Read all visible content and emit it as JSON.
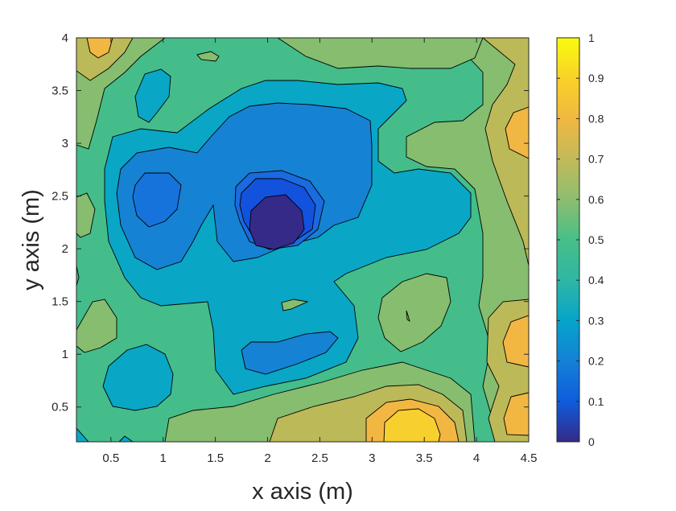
{
  "chart_data": {
    "type": "contourf",
    "xlabel": "x axis (m)",
    "ylabel": "y axis (m)",
    "xlim": [
      0.17,
      4.5
    ],
    "ylim": [
      0.17,
      4.0
    ],
    "x_ticks": [
      "0.5",
      "1",
      "1.5",
      "2",
      "2.5",
      "3",
      "3.5",
      "4",
      "4.5"
    ],
    "y_ticks": [
      "0.5",
      "1",
      "1.5",
      "2",
      "2.5",
      "3",
      "3.5",
      "4"
    ],
    "colorbar": {
      "ticks": [
        "0",
        "0.1",
        "0.2",
        "0.3",
        "0.4",
        "0.5",
        "0.6",
        "0.7",
        "0.8",
        "0.9",
        "1"
      ],
      "range": [
        0,
        1
      ],
      "colormap": "parula"
    },
    "features": [
      {
        "x": 2.1,
        "y": 2.25,
        "value": 0.05
      },
      {
        "x": 0.92,
        "y": 2.45,
        "value": 0.3
      },
      {
        "x": 2.1,
        "y": 0.93,
        "value": 0.3
      },
      {
        "x": 0.8,
        "y": 3.5,
        "value": 0.4
      },
      {
        "x": 0.75,
        "y": 0.8,
        "value": 0.4
      },
      {
        "x": 0.33,
        "y": 1.2,
        "value": 0.6
      },
      {
        "x": 3.35,
        "y": 1.35,
        "value": 0.62
      },
      {
        "x": 3.35,
        "y": 0.35,
        "value": 0.95
      },
      {
        "x": 0.4,
        "y": 3.95,
        "value": 0.8
      },
      {
        "x": 4.45,
        "y": 3.15,
        "value": 0.82
      },
      {
        "x": 4.45,
        "y": 1.0,
        "value": 0.82
      },
      {
        "x": 4.45,
        "y": 0.45,
        "value": 0.82
      }
    ]
  }
}
